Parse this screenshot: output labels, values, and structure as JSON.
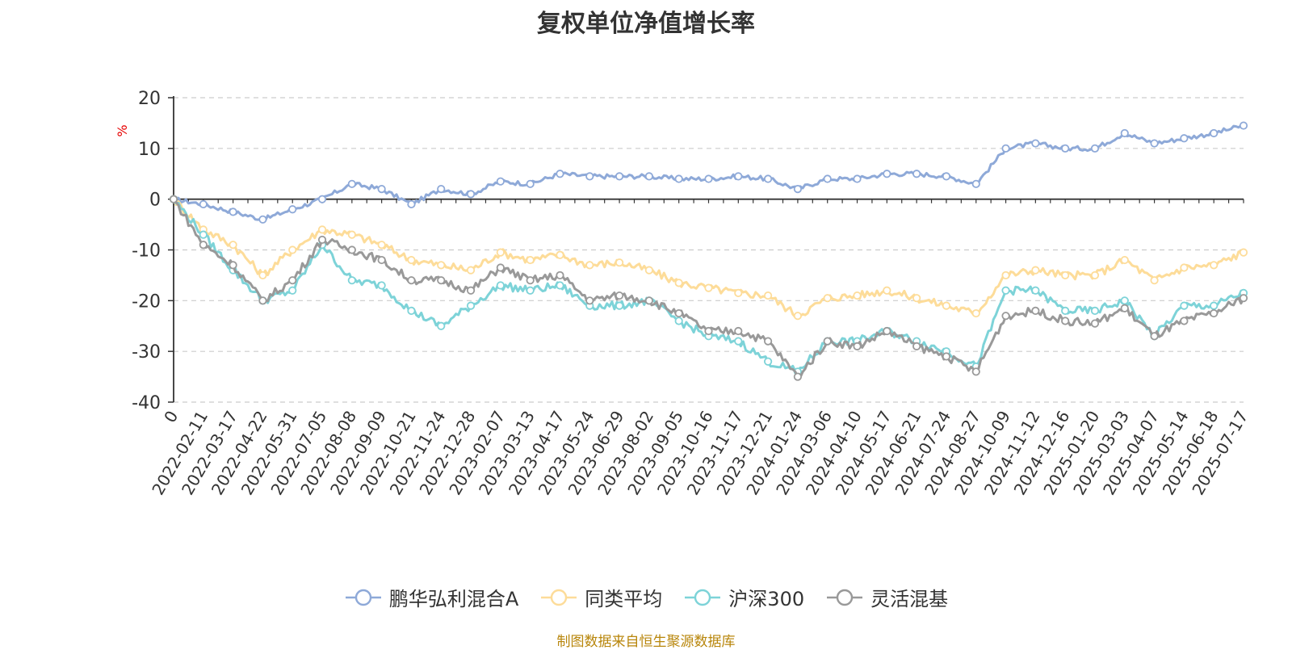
{
  "chart_data": {
    "type": "line",
    "title": "复权单位净值增长率",
    "ylabel": "%",
    "ylim": [
      -40,
      20
    ],
    "yticks": [
      20,
      10,
      0,
      -10,
      -20,
      -30,
      -40
    ],
    "ytick_labels": [
      "20",
      "10",
      "0",
      "-10",
      "-20",
      "-30",
      "-40"
    ],
    "grid": true,
    "legend_position": "bottom",
    "x": [
      "0",
      "2022-02-11",
      "2022-03-17",
      "2022-04-22",
      "2022-05-31",
      "2022-07-05",
      "2022-08-08",
      "2022-09-09",
      "2022-10-21",
      "2022-11-24",
      "2022-12-28",
      "2023-02-07",
      "2023-03-13",
      "2023-04-17",
      "2023-05-24",
      "2023-06-29",
      "2023-08-02",
      "2023-09-05",
      "2023-10-16",
      "2023-11-17",
      "2023-12-21",
      "2024-01-24",
      "2024-03-06",
      "2024-04-10",
      "2024-05-17",
      "2024-06-21",
      "2024-07-24",
      "2024-08-27",
      "2024-10-09",
      "2024-11-12",
      "2024-12-16",
      "2025-01-20",
      "2025-03-03",
      "2025-04-07",
      "2025-05-14",
      "2025-06-18",
      "2025-07-17"
    ],
    "series": [
      {
        "name": "鹏华弘利混合A",
        "color": "#8ea9d8",
        "values": [
          0,
          -1,
          -2.5,
          -4,
          -2,
          0,
          3,
          2,
          -1,
          2,
          1,
          3.5,
          3,
          5,
          4.5,
          4.5,
          4.5,
          4,
          4,
          4.5,
          4,
          2,
          4,
          4,
          5,
          5,
          4.5,
          3,
          10,
          11,
          10,
          10,
          13,
          11,
          12,
          13,
          14.5
        ]
      },
      {
        "name": "同类平均",
        "color": "#fddc99",
        "values": [
          0,
          -6,
          -9,
          -15,
          -10,
          -6,
          -7,
          -9,
          -12,
          -13,
          -14,
          -10.5,
          -12,
          -11,
          -13,
          -12.5,
          -14,
          -16.5,
          -17.5,
          -18.5,
          -19,
          -23,
          -19.5,
          -19,
          -18,
          -19.5,
          -21,
          -22.5,
          -15,
          -14,
          -15,
          -15,
          -12,
          -16,
          -13.5,
          -13,
          -10.5
        ]
      },
      {
        "name": "沪深300",
        "color": "#7dd3d8",
        "values": [
          0,
          -7,
          -14,
          -20,
          -18,
          -9,
          -16,
          -17,
          -22,
          -25,
          -21,
          -17,
          -18,
          -17,
          -21,
          -21,
          -20,
          -24,
          -27,
          -28,
          -32,
          -34,
          -28,
          -28,
          -26,
          -28,
          -30,
          -33,
          -18,
          -18,
          -22,
          -22,
          -20,
          -27,
          -21,
          -21,
          -18.5
        ]
      },
      {
        "name": "灵活混基",
        "color": "#999999",
        "values": [
          0,
          -9,
          -13,
          -20,
          -16,
          -8,
          -10,
          -12,
          -16,
          -16,
          -18,
          -13.5,
          -16,
          -15,
          -20,
          -19,
          -20,
          -22.5,
          -26,
          -26,
          -28,
          -35,
          -28,
          -29,
          -26,
          -29,
          -31,
          -34,
          -23,
          -22,
          -24,
          -24.5,
          -21.5,
          -27,
          -24,
          -22.5,
          -19.5
        ]
      }
    ]
  },
  "source_note": "制图数据来自恒生聚源数据库",
  "colors": {
    "axis": "#333333",
    "grid": "#cccccc",
    "ylabel": "#e60000",
    "source_note": "#b8860b"
  }
}
